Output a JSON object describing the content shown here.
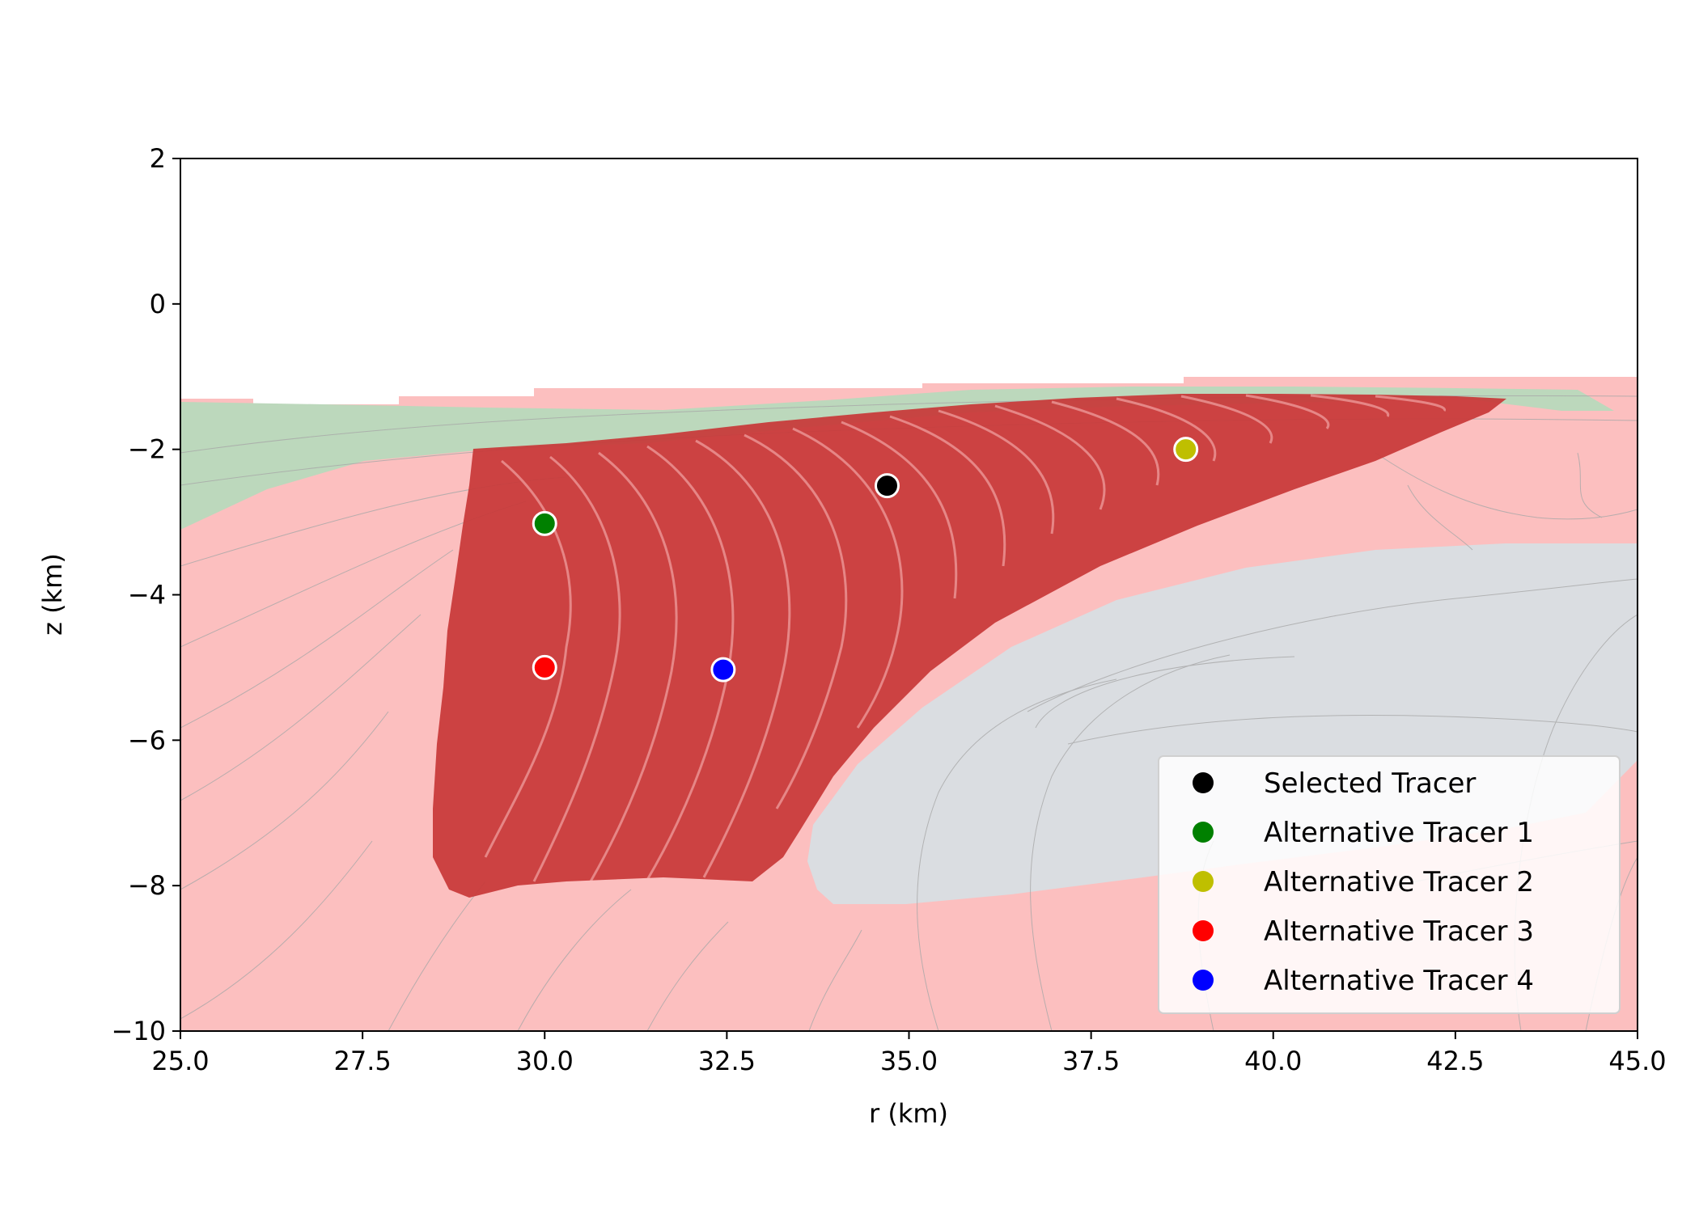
{
  "chart_data": {
    "type": "scatter",
    "title": "",
    "xlabel": "r (km)",
    "ylabel": "z (km)",
    "xlim": [
      25.0,
      45.0
    ],
    "ylim": [
      -10,
      2
    ],
    "xticks": [
      "25.0",
      "27.5",
      "30.0",
      "32.5",
      "35.0",
      "37.5",
      "40.0",
      "42.5",
      "45.0"
    ],
    "yticks": [
      "2",
      "0",
      "−2",
      "−4",
      "−6",
      "−8",
      "−10"
    ],
    "grid": false,
    "legend_position": "lower-right",
    "background_regions": {
      "pink": "#fcbfbf",
      "green": "#bcd8bc",
      "gray": "#dadde1",
      "tracer_cloud": "#c83737"
    },
    "series": [
      {
        "name": "Selected Tracer",
        "color": "#000000",
        "points": [
          [
            34.7,
            -2.5
          ]
        ]
      },
      {
        "name": "Alternative Tracer 1",
        "color": "#008000",
        "points": [
          [
            30.0,
            -3.02
          ]
        ]
      },
      {
        "name": "Alternative Tracer 2",
        "color": "#bfbf00",
        "points": [
          [
            38.8,
            -2.0
          ]
        ]
      },
      {
        "name": "Alternative Tracer 3",
        "color": "#ff0000",
        "points": [
          [
            30.0,
            -5.0
          ]
        ]
      },
      {
        "name": "Alternative Tracer 4",
        "color": "#0000ff",
        "points": [
          [
            32.45,
            -5.03
          ]
        ]
      }
    ]
  }
}
